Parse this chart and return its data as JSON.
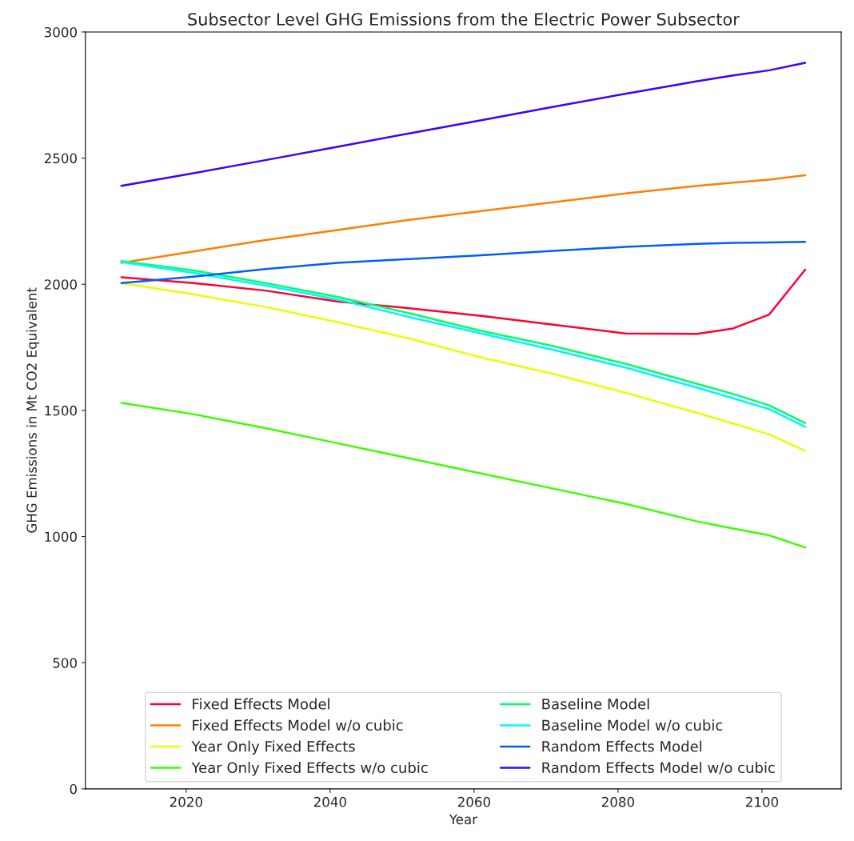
{
  "chart_data": {
    "type": "line",
    "title": "Subsector Level GHG Emissions from the Electric Power Subsector",
    "xlabel": "Year",
    "ylabel": "GHG Emissions in Mt CO2 Equivalent",
    "x": [
      2011,
      2021,
      2031,
      2041,
      2051,
      2061,
      2071,
      2081,
      2091,
      2096,
      2101,
      2106
    ],
    "xlim": [
      2006,
      2111
    ],
    "xticks": [
      2020,
      2040,
      2060,
      2080,
      2100
    ],
    "ylim": [
      0,
      3000
    ],
    "yticks": [
      0,
      500,
      1000,
      1500,
      2000,
      2500,
      3000
    ],
    "legend": "bottom",
    "grid": false,
    "series": [
      {
        "name": "Fixed Effects Model",
        "color": "#ff0030",
        "values": [
          2028,
          2005,
          1975,
          1932,
          1905,
          1875,
          1840,
          1805,
          1803,
          1825,
          1880,
          2058
        ]
      },
      {
        "name": "Fixed Effects Model w/o cubic",
        "color": "#ff7f00",
        "values": [
          2085,
          2130,
          2175,
          2215,
          2255,
          2290,
          2325,
          2360,
          2390,
          2403,
          2415,
          2432
        ]
      },
      {
        "name": "Year Only Fixed Effects",
        "color": "#e8ff00",
        "values": [
          2005,
          1960,
          1910,
          1850,
          1785,
          1710,
          1645,
          1570,
          1490,
          1448,
          1405,
          1340
        ]
      },
      {
        "name": "Year Only Fixed Effects w/o cubic",
        "color": "#3cff00",
        "values": [
          1530,
          1485,
          1430,
          1370,
          1310,
          1250,
          1190,
          1130,
          1060,
          1032,
          1005,
          957
        ]
      },
      {
        "name": "Baseline Model",
        "color": "#00ff6a",
        "values": [
          2092,
          2055,
          2005,
          1950,
          1885,
          1815,
          1755,
          1685,
          1605,
          1565,
          1520,
          1450
        ]
      },
      {
        "name": "Baseline Model w/o cubic",
        "color": "#00f6ff",
        "values": [
          2088,
          2045,
          1995,
          1940,
          1870,
          1805,
          1740,
          1670,
          1590,
          1548,
          1505,
          1435
        ]
      },
      {
        "name": "Random Effects Model",
        "color": "#005eff",
        "values": [
          2005,
          2030,
          2060,
          2085,
          2100,
          2115,
          2132,
          2148,
          2160,
          2164,
          2166,
          2168
        ]
      },
      {
        "name": "Random Effects Model w/o cubic",
        "color": "#3d00ff",
        "values": [
          2390,
          2440,
          2492,
          2545,
          2598,
          2650,
          2703,
          2755,
          2805,
          2828,
          2848,
          2878
        ]
      }
    ]
  }
}
